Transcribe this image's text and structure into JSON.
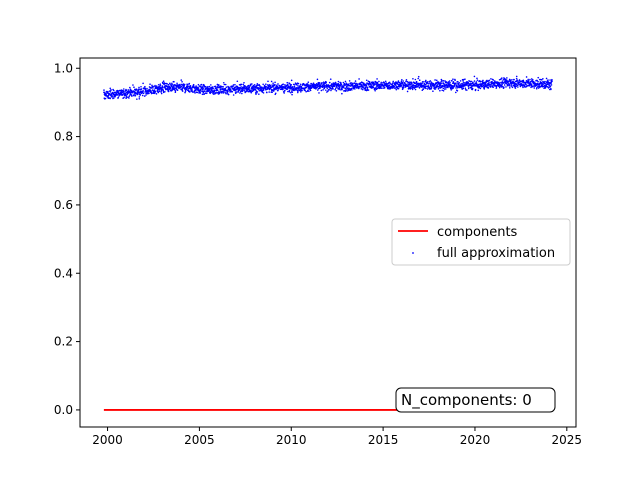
{
  "chart_data": {
    "type": "scatter",
    "title": "",
    "xlabel": "",
    "ylabel": "",
    "xlim": [
      1998.5,
      2025.5
    ],
    "ylim": [
      -0.05,
      1.03
    ],
    "x_ticks": [
      2000,
      2005,
      2010,
      2015,
      2020,
      2025
    ],
    "y_ticks": [
      0.0,
      0.2,
      0.4,
      0.6,
      0.8,
      1.0
    ],
    "x_tick_labels": [
      "2000",
      "2005",
      "2010",
      "2015",
      "2020",
      "2025"
    ],
    "y_tick_labels": [
      "0.0",
      "0.2",
      "0.4",
      "0.6",
      "0.8",
      "1.0"
    ],
    "grid": false,
    "legend_position": "center-right",
    "series": [
      {
        "name": "components",
        "kind": "line",
        "color": "#ff0000",
        "x": [
          1999.8,
          2016.9
        ],
        "y": [
          0.0,
          0.0
        ]
      },
      {
        "name": "full approximation",
        "kind": "scatter",
        "color": "#0000ff",
        "x_range": [
          1999.8,
          2024.2
        ],
        "trend_x": [
          1999.8,
          2001,
          2002,
          2003,
          2004,
          2005,
          2006,
          2008,
          2010,
          2012,
          2014,
          2016,
          2018,
          2020,
          2022,
          2023,
          2024.2
        ],
        "trend_y": [
          0.922,
          0.928,
          0.932,
          0.942,
          0.945,
          0.938,
          0.937,
          0.942,
          0.944,
          0.947,
          0.949,
          0.951,
          0.95,
          0.951,
          0.958,
          0.955,
          0.952
        ],
        "spread": 0.007
      }
    ],
    "annotation": {
      "text": "N_components: 0",
      "x": 2018.6,
      "y": 0.02,
      "box": true
    }
  }
}
